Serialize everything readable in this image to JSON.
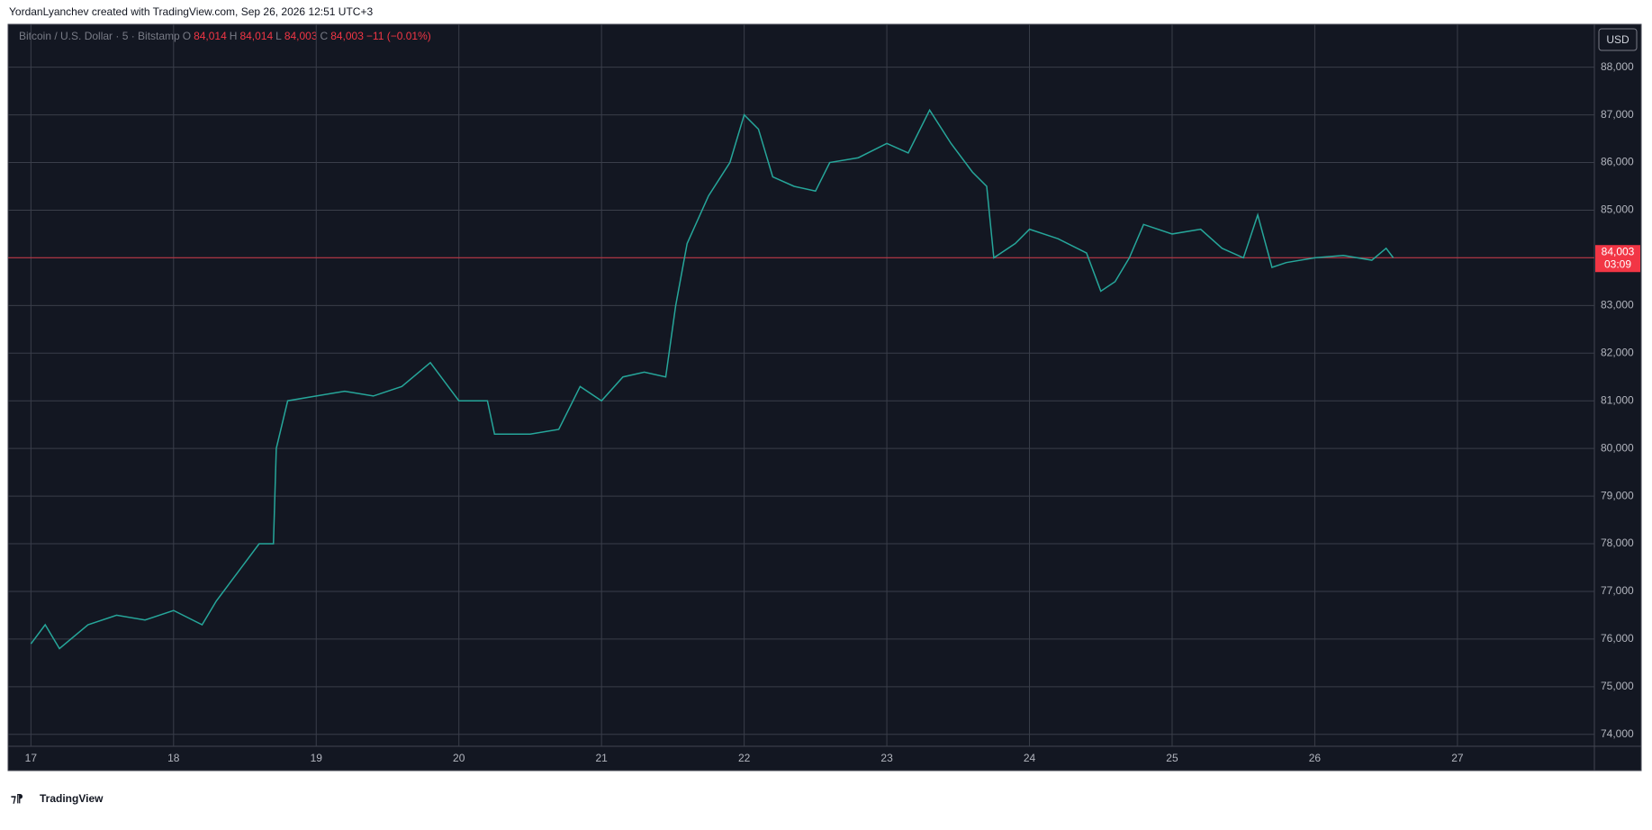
{
  "header": {
    "attribution": "YordanLyanchev created with TradingView.com, Sep 26, 2026 12:51 UTC+3",
    "logo": "TradingView",
    "currency_button": "USD"
  },
  "legend": {
    "o_label": "O",
    "o": "84,014",
    "h_label": "H",
    "h": "84,014",
    "l_label": "L",
    "l": "84,003",
    "c_label": "C",
    "c": "84,003",
    "change": "−11 (−0.01%)"
  },
  "chart_data": {
    "type": "line",
    "x": [
      17.0,
      17.1,
      17.2,
      17.4,
      17.6,
      17.8,
      18.0,
      18.2,
      18.3,
      18.45,
      18.6,
      18.7,
      18.72,
      18.8,
      19.0,
      19.2,
      19.4,
      19.6,
      19.8,
      20.0,
      20.2,
      20.25,
      20.5,
      20.7,
      20.85,
      21.0,
      21.15,
      21.3,
      21.45,
      21.52,
      21.6,
      21.75,
      21.9,
      22.0,
      22.1,
      22.2,
      22.35,
      22.5,
      22.6,
      22.8,
      23.0,
      23.15,
      23.3,
      23.45,
      23.6,
      23.7,
      23.75,
      23.9,
      24.0,
      24.2,
      24.4,
      24.5,
      24.6,
      24.7,
      24.8,
      25.0,
      25.2,
      25.35,
      25.5,
      25.6,
      25.7,
      25.8,
      26.0,
      26.2,
      26.4,
      26.5,
      26.55
    ],
    "series": [
      {
        "name": "Bitcoin / U.S. Dollar · 5 · Bitstamp",
        "color": "#26a69a",
        "values": [
          75900,
          76300,
          75800,
          76300,
          76500,
          76400,
          76600,
          76300,
          76800,
          77400,
          78000,
          78000,
          80000,
          81000,
          81100,
          81200,
          81100,
          81300,
          81800,
          81000,
          81000,
          80300,
          80300,
          80400,
          81300,
          81000,
          81500,
          81600,
          81500,
          83000,
          84300,
          85300,
          86000,
          87000,
          86700,
          85700,
          85500,
          85400,
          86000,
          86100,
          86400,
          86200,
          87100,
          86400,
          85800,
          85500,
          84000,
          84300,
          84600,
          84400,
          84100,
          83300,
          83500,
          84000,
          84700,
          84500,
          84600,
          84200,
          84000,
          84900,
          83800,
          83900,
          84000,
          84050,
          83950,
          84200,
          84003
        ]
      }
    ],
    "last_price": {
      "value": 84003,
      "label": "84,003",
      "countdown": "03:09",
      "color": "#f23645"
    },
    "xlim": [
      16.84,
      27.96
    ],
    "xticks": [
      17,
      18,
      19,
      20,
      21,
      22,
      23,
      24,
      25,
      26,
      27
    ],
    "ylim": [
      73750,
      88900
    ],
    "yticks": [
      {
        "value": 74000,
        "label": "74,000"
      },
      {
        "value": 75000,
        "label": "75,000"
      },
      {
        "value": 76000,
        "label": "76,000"
      },
      {
        "value": 77000,
        "label": "77,000"
      },
      {
        "value": 78000,
        "label": "78,000"
      },
      {
        "value": 79000,
        "label": "79,000"
      },
      {
        "value": 80000,
        "label": "80,000"
      },
      {
        "value": 81000,
        "label": "81,000"
      },
      {
        "value": 82000,
        "label": "82,000"
      },
      {
        "value": 83000,
        "label": "83,000"
      },
      {
        "value": 84000,
        "label": "84,000"
      },
      {
        "value": 85000,
        "label": "85,000"
      },
      {
        "value": 86000,
        "label": "86,000"
      },
      {
        "value": 87000,
        "label": "87,000"
      },
      {
        "value": 88000,
        "label": "88,000"
      }
    ],
    "grid": true
  }
}
